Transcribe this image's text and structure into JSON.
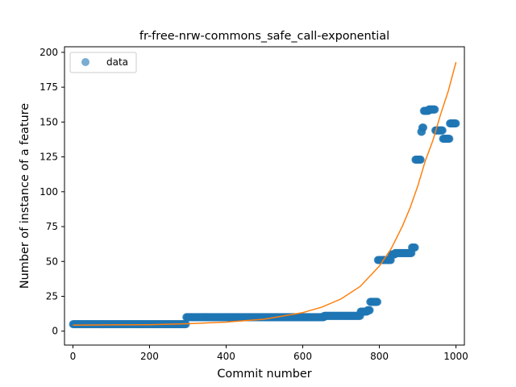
{
  "chart_data": {
    "type": "scatter",
    "title": "fr-free-nrw-commons_safe_call-exponential",
    "xlabel": "Commit number",
    "ylabel": "Number of instance of a feature",
    "xlim": [
      -22,
      1022
    ],
    "ylim": [
      -10,
      204
    ],
    "xticks": [
      0,
      200,
      400,
      600,
      800,
      1000
    ],
    "yticks": [
      0,
      25,
      50,
      75,
      100,
      125,
      150,
      175,
      200
    ],
    "legend": {
      "position": "top-left",
      "entries": [
        "data"
      ]
    },
    "grid": false,
    "colors": {
      "data": "#1f77b4",
      "fit": "#ff7f0e"
    },
    "series": [
      {
        "name": "data",
        "kind": "scatter",
        "segments": [
          {
            "x_start": 0,
            "x_end": 295,
            "y": 5
          },
          {
            "x_start": 296,
            "x_end": 655,
            "y": 10
          },
          {
            "x_start": 656,
            "x_end": 750,
            "y": 11
          },
          {
            "x_start": 751,
            "x_end": 768,
            "y": 14
          },
          {
            "x_start": 769,
            "x_end": 775,
            "y": 15
          },
          {
            "x_start": 776,
            "x_end": 795,
            "y": 21
          },
          {
            "x_start": 796,
            "x_end": 830,
            "y": 51
          },
          {
            "x_start": 831,
            "x_end": 840,
            "y": 55
          },
          {
            "x_start": 841,
            "x_end": 884,
            "y": 56
          },
          {
            "x_start": 885,
            "x_end": 893,
            "y": 60
          },
          {
            "x_start": 894,
            "x_end": 908,
            "y": 123
          },
          {
            "x_start": 909,
            "x_end": 911,
            "y": 143
          },
          {
            "x_start": 912,
            "x_end": 915,
            "y": 146
          },
          {
            "x_start": 916,
            "x_end": 928,
            "y": 158
          },
          {
            "x_start": 929,
            "x_end": 945,
            "y": 159
          },
          {
            "x_start": 946,
            "x_end": 965,
            "y": 144
          },
          {
            "x_start": 966,
            "x_end": 983,
            "y": 138
          },
          {
            "x_start": 984,
            "x_end": 1000,
            "y": 149
          }
        ]
      },
      {
        "kind": "line",
        "x": [
          0,
          100,
          200,
          300,
          400,
          500,
          600,
          650,
          700,
          750,
          800,
          830,
          860,
          880,
          900,
          920,
          940,
          960,
          980,
          1000
        ],
        "y": [
          4.3,
          4.5,
          4.6,
          5.3,
          6.5,
          8.6,
          13.3,
          17.2,
          23.1,
          32.1,
          46.7,
          58.7,
          75.2,
          88.3,
          103.9,
          122.2,
          137.0,
          155.6,
          172.3,
          193.0
        ]
      }
    ]
  }
}
